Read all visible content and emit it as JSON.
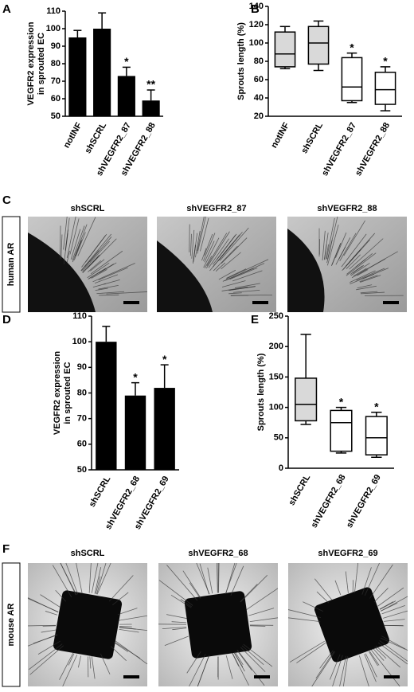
{
  "chart_data": [
    {
      "panel": "A",
      "type": "bar",
      "ylabel": [
        "VEGFR2 expression",
        "in sprouted EC"
      ],
      "categories": [
        "notINF",
        "shSCRL",
        "shVEGFR2_87",
        "shVEGFR2_88"
      ],
      "values": [
        95,
        100,
        73,
        59
      ],
      "errors": [
        4,
        9,
        5,
        6
      ],
      "annotations": [
        null,
        null,
        "*",
        "**"
      ],
      "color": "#000000",
      "ylim": [
        50,
        110
      ],
      "yticks": [
        50,
        60,
        70,
        80,
        90,
        100,
        110
      ]
    },
    {
      "panel": "B",
      "type": "box",
      "ylabel": [
        "Sprouts length (%)"
      ],
      "categories": [
        "notINF",
        "shSCRL",
        "shVEGFR2_87",
        "shVEGFR2_88"
      ],
      "min": [
        72,
        70,
        35,
        26
      ],
      "q1": [
        74,
        77,
        37,
        33
      ],
      "median": [
        88,
        100,
        52,
        49
      ],
      "q3": [
        112,
        118,
        84,
        68
      ],
      "max": [
        118,
        124,
        89,
        74
      ],
      "colors": [
        "#d9d9d9",
        "#d9d9d9",
        "#ffffff",
        "#ffffff"
      ],
      "annotations": [
        null,
        null,
        "*",
        "*"
      ],
      "ylim": [
        20,
        140
      ],
      "yticks": [
        20,
        40,
        60,
        80,
        100,
        120,
        140
      ]
    },
    {
      "panel": "D",
      "type": "bar",
      "ylabel": [
        "VEGFR2 expression",
        "in sprouted EC"
      ],
      "categories": [
        "shSCRL",
        "shVEGFR2_68",
        "shVEGFR2_69"
      ],
      "values": [
        100,
        79,
        82
      ],
      "errors": [
        6,
        5,
        9
      ],
      "annotations": [
        null,
        "*",
        "*"
      ],
      "color": "#000000",
      "ylim": [
        50,
        110
      ],
      "yticks": [
        50,
        60,
        70,
        80,
        90,
        100,
        110
      ]
    },
    {
      "panel": "E",
      "type": "box",
      "ylabel": [
        "Sprouts length (%)"
      ],
      "categories": [
        "shSCRL",
        "shVEGFR2_68",
        "shVEGFR2_69"
      ],
      "min": [
        72,
        25,
        18
      ],
      "q1": [
        78,
        28,
        22
      ],
      "median": [
        105,
        75,
        50
      ],
      "q3": [
        148,
        95,
        85
      ],
      "max": [
        220,
        100,
        92
      ],
      "colors": [
        "#d9d9d9",
        "#ffffff",
        "#ffffff"
      ],
      "annotations": [
        null,
        "*",
        "*"
      ],
      "ylim": [
        0,
        250
      ],
      "yticks": [
        0,
        50,
        100,
        150,
        200,
        250
      ]
    }
  ],
  "image_panels": [
    {
      "panel": "C",
      "side_label": "human AR",
      "titles": [
        "shSCRL",
        "shVEGFR2_87",
        "shVEGFR2_88"
      ]
    },
    {
      "panel": "F",
      "side_label": "mouse AR",
      "titles": [
        "shSCRL",
        "shVEGFR2_68",
        "shVEGFR2_69"
      ]
    }
  ]
}
